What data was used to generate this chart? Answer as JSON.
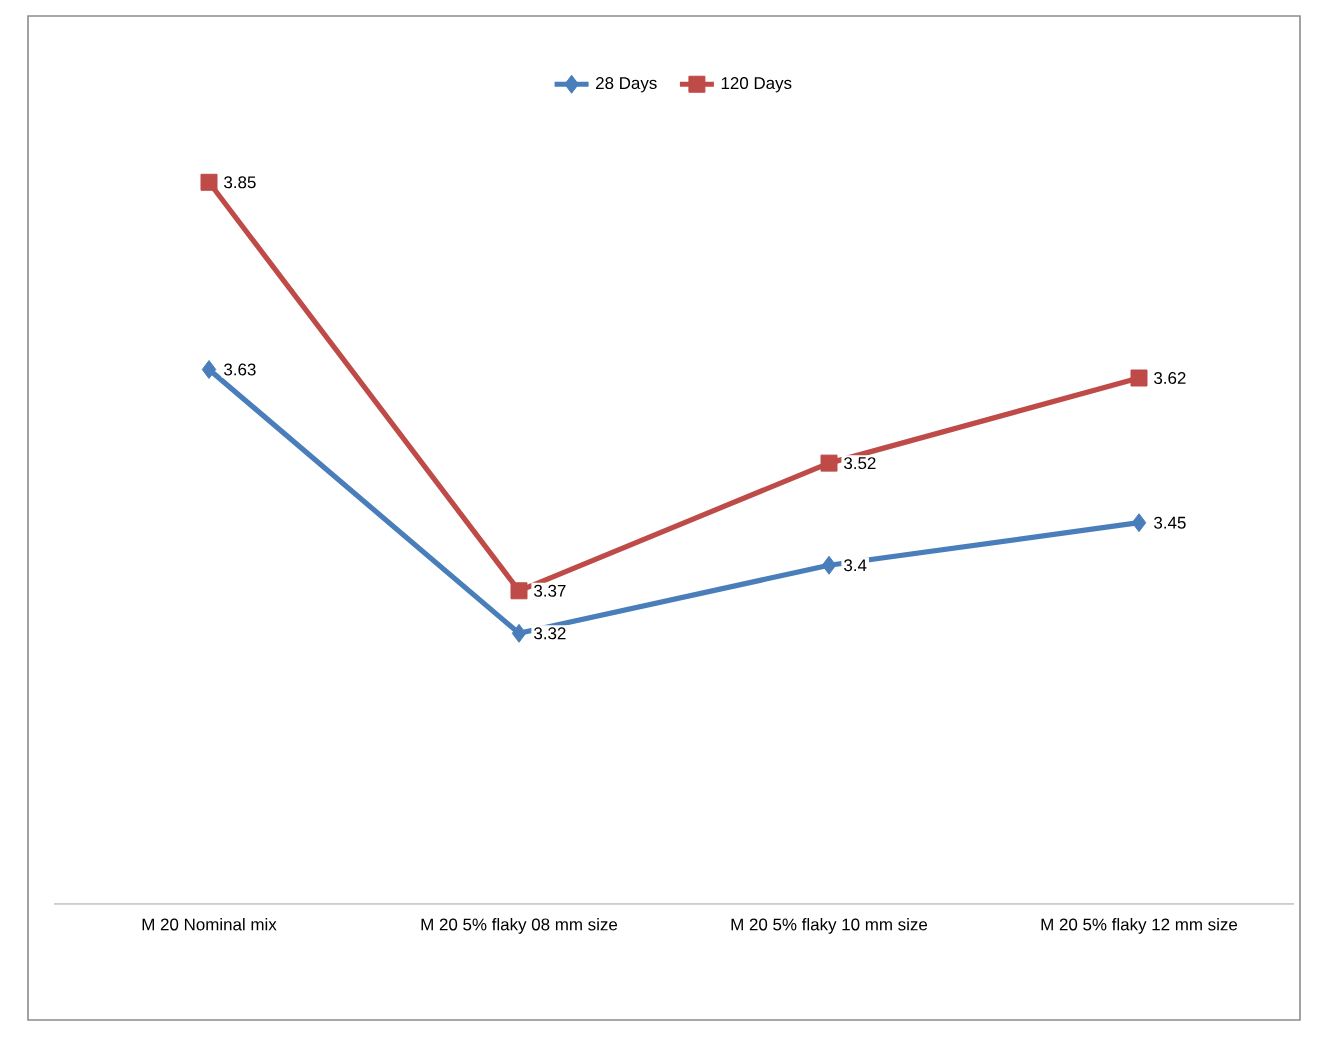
{
  "chart_data": {
    "type": "line",
    "categories": [
      "M 20 Nominal  mix",
      "M 20 5% flaky 08 mm size",
      "M 20 5% flaky 10 mm size",
      "M 20 5% flaky 12 mm size"
    ],
    "series": [
      {
        "name": "28 Days",
        "color": "#4a7ebb",
        "marker": "diamond",
        "values": [
          3.63,
          3.32,
          3.4,
          3.45
        ]
      },
      {
        "name": "120 Days",
        "color": "#be4b48",
        "marker": "square",
        "values": [
          3.85,
          3.37,
          3.52,
          3.62
        ]
      }
    ],
    "data_labels": true,
    "legend": "top",
    "tick_labels": "x"
  }
}
